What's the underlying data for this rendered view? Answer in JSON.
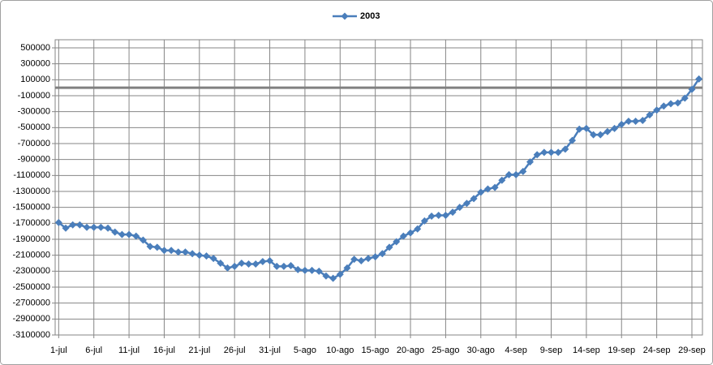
{
  "chart_data": {
    "type": "line",
    "categories": [
      "1-jul",
      null,
      null,
      null,
      null,
      "6-jul",
      null,
      null,
      null,
      null,
      "11-jul",
      null,
      null,
      null,
      null,
      "16-jul",
      null,
      null,
      null,
      null,
      "21-jul",
      null,
      null,
      null,
      null,
      "26-jul",
      null,
      null,
      null,
      null,
      "31-jul",
      null,
      null,
      null,
      null,
      "5-ago",
      null,
      null,
      null,
      null,
      "10-ago",
      null,
      null,
      null,
      null,
      "15-ago",
      null,
      null,
      null,
      null,
      "20-ago",
      null,
      null,
      null,
      null,
      "25-ago",
      null,
      null,
      null,
      null,
      "30-ago",
      null,
      null,
      null,
      null,
      "4-sep",
      null,
      null,
      null,
      null,
      "9-sep",
      null,
      null,
      null,
      null,
      "14-sep",
      null,
      null,
      null,
      null,
      "19-sep",
      null,
      null,
      null,
      null,
      "24-sep",
      null,
      null,
      null,
      null,
      "29-sep",
      null
    ],
    "series": [
      {
        "name": "2003",
        "color": "#4a7ebb",
        "values": [
          -1690000,
          -1760000,
          -1720000,
          -1720000,
          -1750000,
          -1750000,
          -1750000,
          -1760000,
          -1810000,
          -1840000,
          -1840000,
          -1860000,
          -1910000,
          -1990000,
          -2000000,
          -2040000,
          -2040000,
          -2060000,
          -2060000,
          -2080000,
          -2100000,
          -2110000,
          -2140000,
          -2200000,
          -2260000,
          -2240000,
          -2200000,
          -2210000,
          -2210000,
          -2180000,
          -2170000,
          -2240000,
          -2240000,
          -2230000,
          -2280000,
          -2290000,
          -2290000,
          -2300000,
          -2360000,
          -2390000,
          -2340000,
          -2260000,
          -2150000,
          -2170000,
          -2140000,
          -2120000,
          -2080000,
          -2000000,
          -1930000,
          -1860000,
          -1820000,
          -1770000,
          -1670000,
          -1610000,
          -1600000,
          -1600000,
          -1560000,
          -1500000,
          -1450000,
          -1390000,
          -1310000,
          -1270000,
          -1250000,
          -1160000,
          -1090000,
          -1090000,
          -1050000,
          -930000,
          -840000,
          -810000,
          -810000,
          -810000,
          -770000,
          -660000,
          -520000,
          -510000,
          -590000,
          -590000,
          -550000,
          -510000,
          -460000,
          -420000,
          -420000,
          -410000,
          -340000,
          -280000,
          -230000,
          -200000,
          -190000,
          -130000,
          -20000,
          110000
        ]
      }
    ],
    "ylim": [
      -3100000,
      500000
    ],
    "yticks": [
      500000,
      300000,
      100000,
      -100000,
      -300000,
      -500000,
      -700000,
      -900000,
      -1100000,
      -1300000,
      -1500000,
      -1700000,
      -1900000,
      -2100000,
      -2300000,
      -2500000,
      -2700000,
      -2900000,
      -3100000
    ],
    "grid": true,
    "reference_line": 0,
    "reference_line_color": "#808080",
    "legend": "top"
  }
}
